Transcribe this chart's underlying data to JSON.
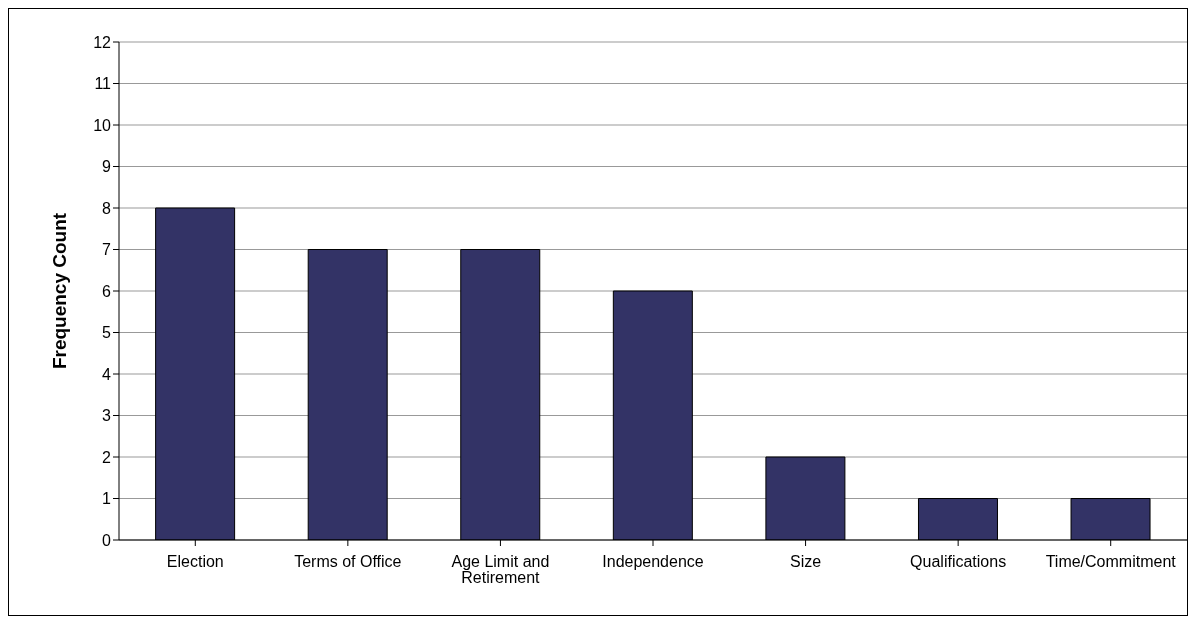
{
  "chart_data": {
    "type": "bar",
    "ylabel": "Frequency Count",
    "categories": [
      "Election",
      "Terms of Office",
      "Age Limit and Retirement",
      "Independence",
      "Size",
      "Qualifications",
      "Time/Commitment"
    ],
    "values": [
      8,
      7,
      7,
      6,
      2,
      1,
      1
    ],
    "color": "#333366",
    "ylim": [
      0,
      12
    ],
    "yticks": [
      0,
      1,
      2,
      3,
      4,
      5,
      6,
      7,
      8,
      9,
      10,
      11,
      12
    ],
    "grid": "y"
  }
}
